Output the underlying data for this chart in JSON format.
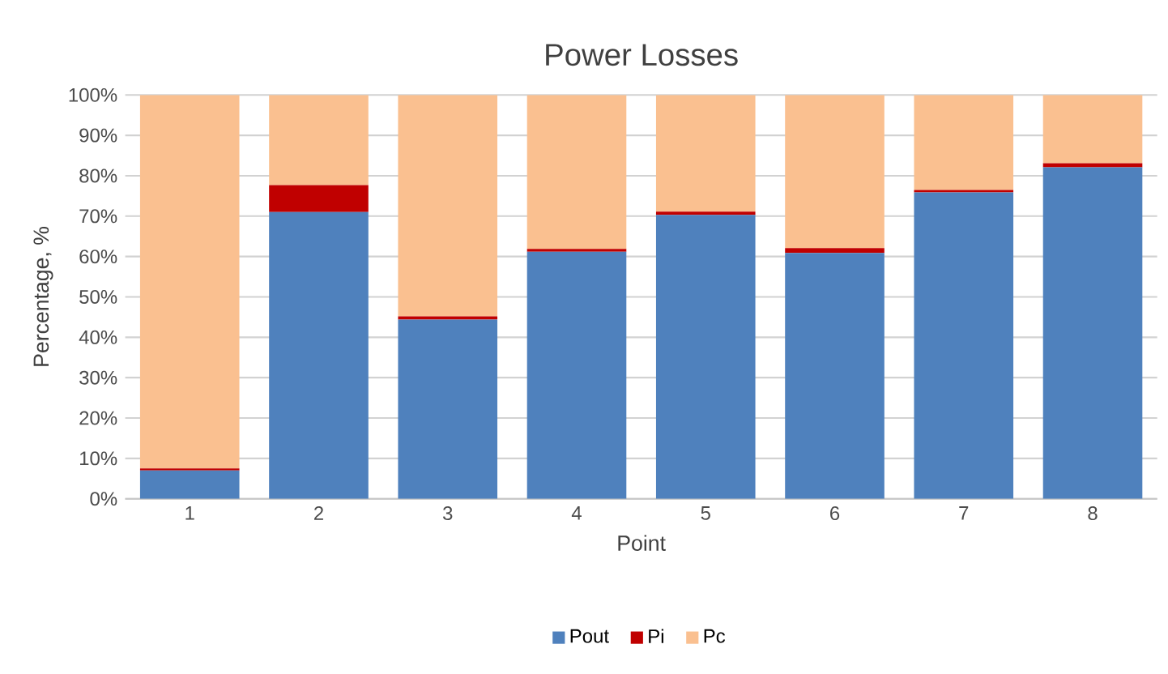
{
  "chart_data": {
    "type": "bar",
    "stacked": true,
    "title": "Power Losses",
    "xlabel": "Point",
    "ylabel": "Percentage, %",
    "categories": [
      "1",
      "2",
      "3",
      "4",
      "5",
      "6",
      "7",
      "8"
    ],
    "series": [
      {
        "name": "Pout",
        "color": "#4f81bd",
        "values": [
          7.0,
          71.0,
          44.4,
          61.2,
          70.3,
          60.9,
          75.9,
          82.1
        ]
      },
      {
        "name": "Pi",
        "color": "#c00000",
        "values": [
          0.5,
          6.7,
          0.8,
          0.7,
          0.8,
          1.2,
          0.6,
          1.0
        ]
      },
      {
        "name": "Pc",
        "color": "#fac090",
        "values": [
          92.5,
          22.3,
          54.8,
          38.1,
          28.9,
          37.9,
          23.5,
          16.9
        ]
      }
    ],
    "ylim": [
      0,
      100
    ],
    "yticks": [
      {
        "value": 0,
        "label": "0%"
      },
      {
        "value": 10,
        "label": "10%"
      },
      {
        "value": 20,
        "label": "20%"
      },
      {
        "value": 30,
        "label": "30%"
      },
      {
        "value": 40,
        "label": "40%"
      },
      {
        "value": 50,
        "label": "50%"
      },
      {
        "value": 60,
        "label": "60%"
      },
      {
        "value": 70,
        "label": "70%"
      },
      {
        "value": 80,
        "label": "80%"
      },
      {
        "value": 90,
        "label": "90%"
      },
      {
        "value": 100,
        "label": "100%"
      }
    ],
    "grid": "y",
    "legend": "bottom"
  }
}
